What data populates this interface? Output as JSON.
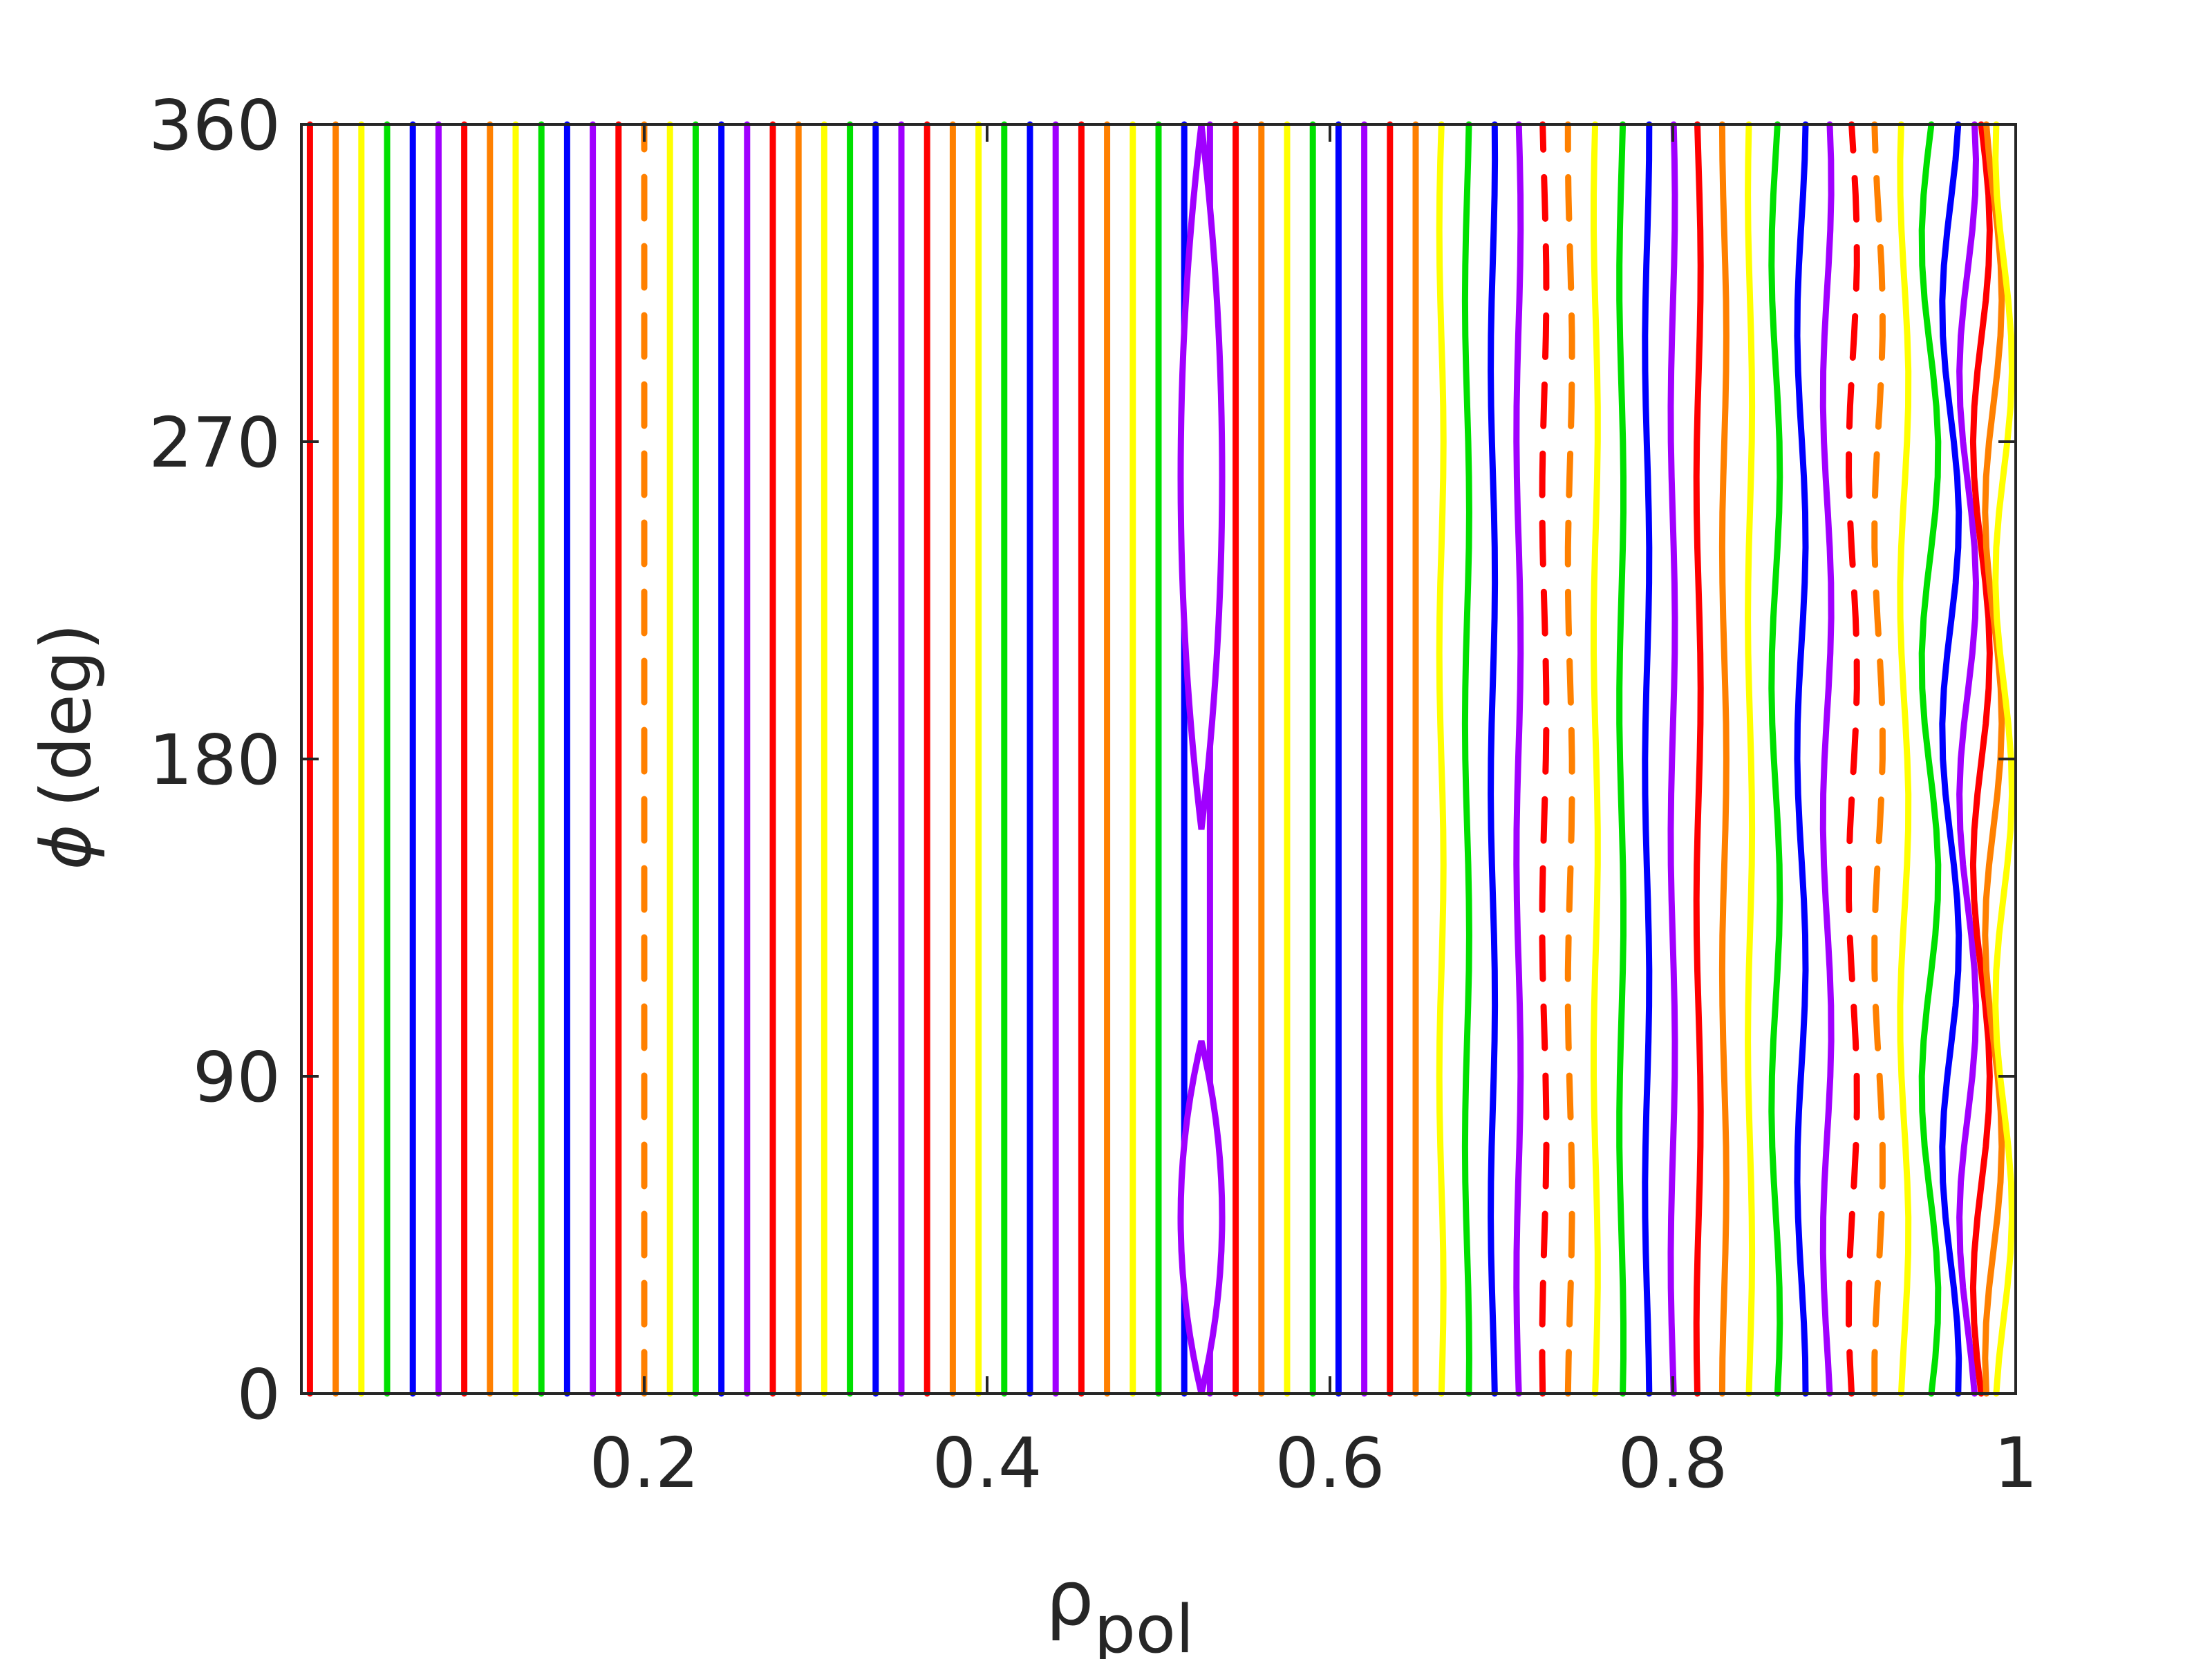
{
  "chart_data": {
    "type": "line",
    "subtype": "contour",
    "xlabel": "ρ",
    "xlabel_sub": "pol",
    "ylabel_symbol": "ϕ",
    "ylabel_unit": "(deg)",
    "xlim": [
      0.0,
      1.0
    ],
    "ylim": [
      0,
      360
    ],
    "x_ticks": [
      0.2,
      0.4,
      0.6,
      0.8,
      1.0
    ],
    "x_tick_labels": [
      "0.2",
      "0.4",
      "0.6",
      "0.8",
      "1"
    ],
    "y_ticks": [
      0,
      90,
      180,
      270,
      360
    ],
    "y_tick_labels": [
      "0",
      "90",
      "180",
      "270",
      "360"
    ],
    "grid": false,
    "legend": "none",
    "color_cycle": [
      "#ff0000",
      "#ff8000",
      "#ffff00",
      "#00e000",
      "#0000ff",
      "#a000ff"
    ],
    "contour_levels_rho": [
      0.005,
      0.02,
      0.035,
      0.05,
      0.065,
      0.08,
      0.095,
      0.11,
      0.125,
      0.14,
      0.155,
      0.17,
      0.185,
      0.2,
      0.215,
      0.23,
      0.245,
      0.26,
      0.275,
      0.29,
      0.305,
      0.32,
      0.335,
      0.35,
      0.365,
      0.38,
      0.395,
      0.41,
      0.425,
      0.44,
      0.455,
      0.47,
      0.485,
      0.5,
      0.515,
      0.53,
      0.545,
      0.56,
      0.575,
      0.59,
      0.605,
      0.62,
      0.635,
      0.65,
      0.665,
      0.68,
      0.695,
      0.71,
      0.725,
      0.74,
      0.755,
      0.77,
      0.785,
      0.8,
      0.815,
      0.83,
      0.845,
      0.86,
      0.875,
      0.89,
      0.905,
      0.92,
      0.935,
      0.95,
      0.962,
      0.972,
      0.98,
      0.987,
      0.993
    ],
    "island_rho": 0.525,
    "island_phi": [
      [
        0,
        100
      ],
      [
        160,
        360
      ]
    ]
  }
}
